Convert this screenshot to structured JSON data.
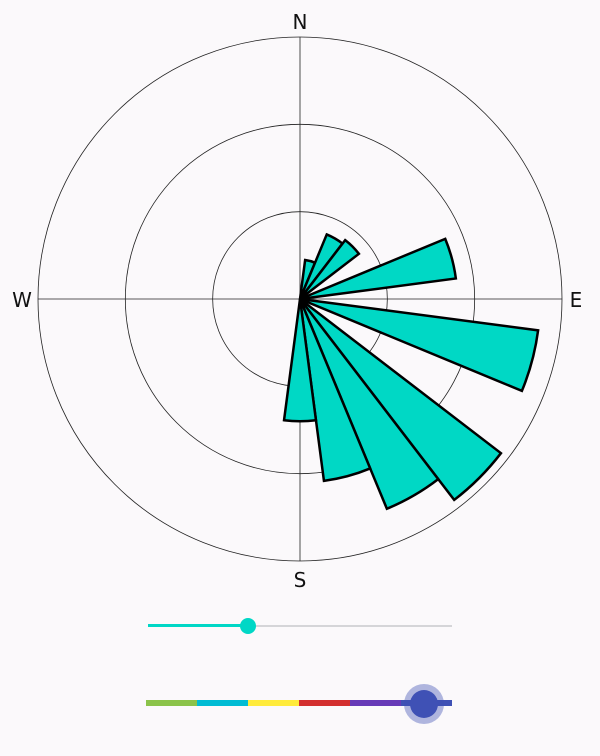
{
  "compass": {
    "north": "N",
    "south": "S",
    "west": "W",
    "east": "E"
  },
  "chart_data": {
    "type": "polar-bar",
    "rings": [
      1,
      2,
      3
    ],
    "ring_max": 3,
    "fill_color": "#00d8c5",
    "stroke_color": "#000000",
    "sectors": [
      {
        "dir_deg": 15,
        "value": 0.45
      },
      {
        "dir_deg": 30,
        "value": 0.8
      },
      {
        "dir_deg": 45,
        "value": 0.85
      },
      {
        "dir_deg": 75,
        "value": 1.8
      },
      {
        "dir_deg": 105,
        "value": 2.75
      },
      {
        "dir_deg": 135,
        "value": 2.9
      },
      {
        "dir_deg": 150,
        "value": 2.6
      },
      {
        "dir_deg": 165,
        "value": 2.1
      },
      {
        "dir_deg": 180,
        "value": 1.4
      }
    ]
  },
  "speed_slider": {
    "value_fraction": 0.33,
    "accent": "#00d7c6"
  },
  "color_slider": {
    "segments": [
      "#8bc34a",
      "#00bcd4",
      "#ffeb3b",
      "#d32f2f",
      "#673ab7",
      "#3f51b5"
    ],
    "value_fraction": 0.91,
    "thumb_color": "#3f51b5"
  }
}
